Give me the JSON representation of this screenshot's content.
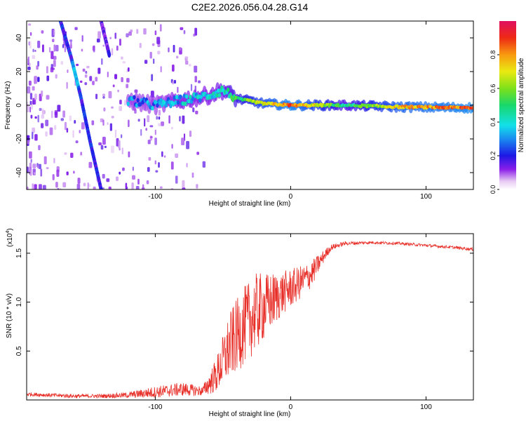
{
  "figure": {
    "title": "C2E2.2026.056.04.28.G14"
  },
  "chart_data": [
    {
      "type": "heatmap",
      "title": "C2E2.2026.056.04.28.G14",
      "xlabel": "Height of straight line (km)",
      "ylabel": "Frequency (Hz)",
      "xlim": [
        -195,
        135
      ],
      "ylim": [
        -50,
        50
      ],
      "xticks": [
        -100,
        0,
        100
      ],
      "yticks": [
        -40,
        -20,
        0,
        20,
        40
      ],
      "colorbar": {
        "label": "Normalized spectral amplitude",
        "range": [
          0.0,
          1.0
        ],
        "ticks": [
          0.0,
          0.2,
          0.4,
          0.6,
          0.8
        ],
        "tick_labels": [
          "0.0",
          "0.2",
          "0.4",
          "0.6",
          "0.8"
        ]
      },
      "features": [
        {
          "name": "descending trace A",
          "x": [
            -170,
            -162,
            -155,
            -148,
            -140
          ],
          "y": [
            50,
            28,
            5,
            -22,
            -50
          ],
          "amplitude": 0.2
        },
        {
          "name": "descending trace B",
          "x": [
            -140,
            -137,
            -134
          ],
          "y": [
            50,
            40,
            30
          ],
          "amplitude": 0.15
        },
        {
          "name": "carrier line",
          "x": [
            -120,
            -100,
            -80,
            -60,
            -50,
            -40,
            -20,
            0,
            40,
            80,
            135
          ],
          "y": [
            3,
            0,
            3,
            6,
            9,
            4,
            1,
            0,
            0,
            -1,
            -1.5
          ],
          "amplitude": [
            0.3,
            0.3,
            0.35,
            0.35,
            0.4,
            0.5,
            0.7,
            0.85,
            0.45,
            0.75,
            0.85
          ]
        }
      ]
    },
    {
      "type": "line",
      "xlabel": "Height of straight line (km)",
      "ylabel": "SNR (10 * v/v)",
      "y_scale_label": "(x10",
      "y_scale_exp": "4",
      "y_scale_close": ")",
      "xlim": [
        -195,
        135
      ],
      "ylim": [
        0.0,
        1.7
      ],
      "xticks": [
        -100,
        0,
        100
      ],
      "yticks": [
        0.5,
        1.0,
        1.5
      ],
      "ytick_labels": [
        "0.5",
        "1.0",
        "1.5"
      ],
      "color": "#e8302a",
      "x": [
        -195,
        -180,
        -160,
        -140,
        -120,
        -100,
        -80,
        -65,
        -55,
        -45,
        -35,
        -25,
        -15,
        -5,
        5,
        15,
        25,
        30,
        40,
        60,
        80,
        100,
        120,
        135
      ],
      "y": [
        0.06,
        0.05,
        0.04,
        0.04,
        0.05,
        0.08,
        0.11,
        0.09,
        0.25,
        0.55,
        0.75,
        0.9,
        1.0,
        1.1,
        1.18,
        1.28,
        1.48,
        1.56,
        1.6,
        1.61,
        1.6,
        1.58,
        1.56,
        1.54
      ],
      "noise": [
        0.02,
        0.02,
        0.02,
        0.02,
        0.03,
        0.06,
        0.07,
        0.05,
        0.18,
        0.35,
        0.4,
        0.4,
        0.3,
        0.22,
        0.18,
        0.14,
        0.06,
        0.03,
        0.02,
        0.015,
        0.015,
        0.015,
        0.015,
        0.015
      ]
    }
  ]
}
